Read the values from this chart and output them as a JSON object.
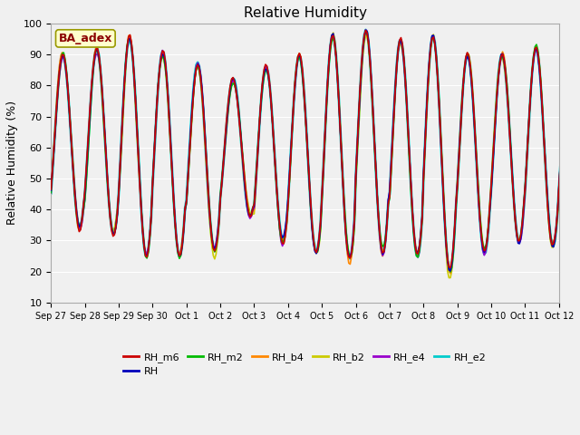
{
  "title": "Relative Humidity",
  "ylabel": "Relative Humidity (%)",
  "ylim": [
    10,
    100
  ],
  "yticks": [
    10,
    20,
    30,
    40,
    50,
    60,
    70,
    80,
    90,
    100
  ],
  "bg_color": "#f0f0f0",
  "annotation_text": "BA_adex",
  "annotation_box_facecolor": "#ffffcc",
  "annotation_box_edgecolor": "#999900",
  "annotation_text_color": "#8b0000",
  "series_colors": {
    "RH_m6": "#cc0000",
    "RH": "#0000bb",
    "RH_m2": "#00bb00",
    "RH_b4": "#ff8800",
    "RH_b2": "#cccc00",
    "RH_e4": "#9900cc",
    "RH_e2": "#00cccc"
  },
  "series_lw": {
    "RH_m6": 1.2,
    "RH": 1.2,
    "RH_m2": 1.2,
    "RH_b4": 1.2,
    "RH_b2": 1.2,
    "RH_e4": 1.2,
    "RH_e2": 2.0
  },
  "series_zorder": {
    "RH_e2": 1,
    "RH_b2": 2,
    "RH_b4": 3,
    "RH_e4": 4,
    "RH_m2": 5,
    "RH": 6,
    "RH_m6": 7
  },
  "x_tick_labels": [
    "Sep 27",
    "Sep 28",
    "Sep 29",
    "Sep 30",
    "Oct 1",
    "Oct 2",
    "Oct 3",
    "Oct 4",
    "Oct 5",
    "Oct 6",
    "Oct 7",
    "Oct 8",
    "Oct 9",
    "Oct 10",
    "Oct 11",
    "Oct 12"
  ],
  "legend_order": [
    "RH_m6",
    "RH",
    "RH_m2",
    "RH_b4",
    "RH_b2",
    "RH_e4",
    "RH_e2"
  ],
  "n_days": 16,
  "hours_per_day": 24,
  "grid_color": "#ffffff",
  "tick_fontsize": 7,
  "title_fontsize": 11,
  "ylabel_fontsize": 9,
  "legend_fontsize": 8
}
